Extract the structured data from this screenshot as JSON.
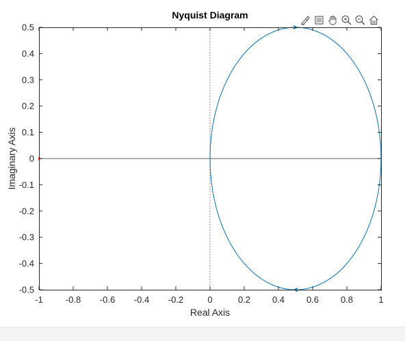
{
  "toolbar": {
    "icons": [
      "brush-icon",
      "legend-icon",
      "pan-hand-icon",
      "zoom-in-icon",
      "zoom-out-icon",
      "home-icon"
    ]
  },
  "chart_data": {
    "type": "line",
    "title": "Nyquist Diagram",
    "xlabel": "Real Axis",
    "ylabel": "Imaginary Axis",
    "xlim": [
      -1,
      1
    ],
    "ylim": [
      -0.5,
      0.5
    ],
    "xticks": [
      "-1",
      "-0.8",
      "-0.6",
      "-0.4",
      "-0.2",
      "0",
      "0.2",
      "0.4",
      "0.6",
      "0.8",
      "1"
    ],
    "yticks": [
      "-0.5",
      "-0.4",
      "-0.3",
      "-0.2",
      "-0.1",
      "0",
      "0.1",
      "0.2",
      "0.3",
      "0.4",
      "0.5"
    ],
    "grid": false,
    "curve": {
      "center": [
        0.5,
        0
      ],
      "radius": 0.5
    },
    "critical_point": [
      -1,
      0
    ],
    "colors": {
      "curve": "#0072bd",
      "critical_point": "#ff0000",
      "axis_lines": "#808080"
    }
  }
}
